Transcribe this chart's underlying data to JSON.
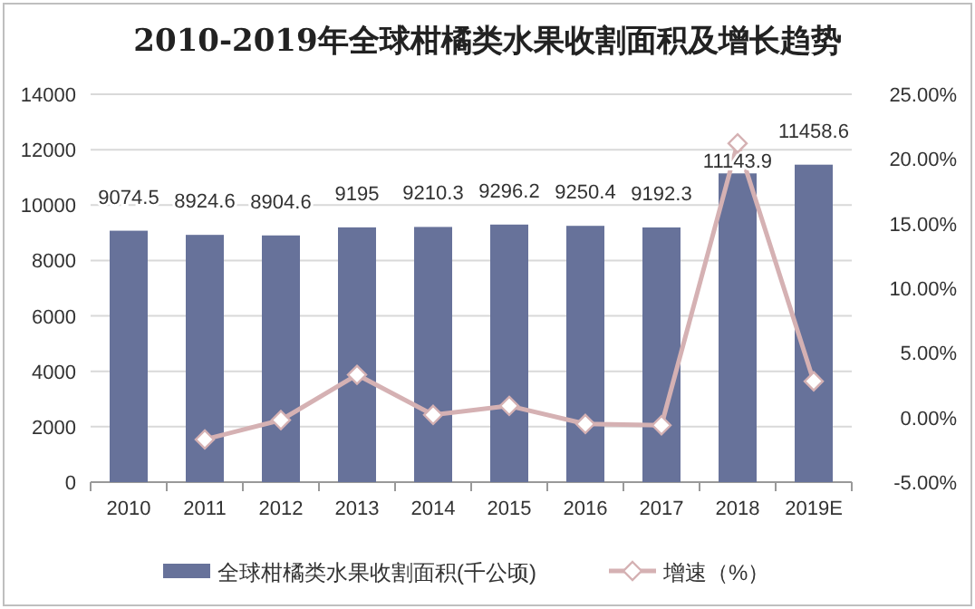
{
  "chart_data": {
    "type": "bar",
    "title": "2010-2019年全球柑橘类水果收割面积及增长趋势",
    "categories": [
      "2010",
      "2011",
      "2012",
      "2013",
      "2014",
      "2015",
      "2016",
      "2017",
      "2018",
      "2019E"
    ],
    "series": [
      {
        "name": "全球柑橘类水果收割面积(千公顷)",
        "color": "#67729a",
        "values": [
          9074.5,
          8924.6,
          8904.6,
          9195,
          9210.3,
          9296.2,
          9250.4,
          9192.3,
          11143.9,
          11458.6
        ],
        "data_labels": true
      },
      {
        "name": "增速（%）",
        "type": "line",
        "axis": "y2",
        "color": "#d5b1b3",
        "marker": "diamond",
        "values": [
          null,
          -1.7,
          -0.2,
          3.3,
          0.2,
          0.9,
          -0.5,
          -0.6,
          21.2,
          2.8
        ]
      }
    ],
    "ylim": [
      0,
      14000
    ],
    "yticks": [
      0,
      2000,
      4000,
      6000,
      8000,
      10000,
      12000,
      14000
    ],
    "y2lim": [
      -5,
      25
    ],
    "y2ticks": [
      {
        "value": -5,
        "label": "-5.00%"
      },
      {
        "value": 0,
        "label": "0.00%"
      },
      {
        "value": 5,
        "label": "5.00%"
      },
      {
        "value": 10,
        "label": "10.00%"
      },
      {
        "value": 15,
        "label": "15.00%"
      },
      {
        "value": 20,
        "label": "20.00%"
      },
      {
        "value": 25,
        "label": "25.00%"
      }
    ],
    "grid": "y",
    "legend": "bottom"
  }
}
